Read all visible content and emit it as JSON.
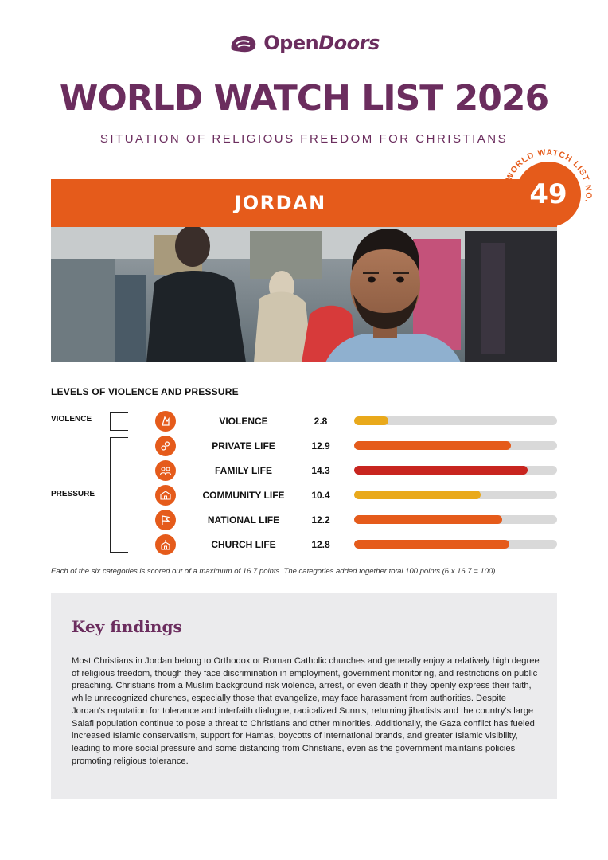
{
  "brand": {
    "name_part1": "Open",
    "name_part2": "Doors"
  },
  "title": "WORLD WATCH LIST 2026",
  "subtitle": "SITUATION OF RELIGIOUS FREEDOM FOR CHRISTIANS",
  "country": "JORDAN",
  "rank": {
    "number": "49",
    "arc_label": "WORLD WATCH LIST NO."
  },
  "levels": {
    "title": "LEVELS OF VIOLENCE AND PRESSURE",
    "violence_label": "VIOLENCE",
    "pressure_label": "PRESSURE",
    "max_score": 16.7,
    "categories": [
      {
        "label": "VIOLENCE",
        "score": "2.8",
        "value": 2.8,
        "color": "#e9a91b",
        "icon": "violence-icon"
      },
      {
        "label": "PRIVATE LIFE",
        "score": "12.9",
        "value": 12.9,
        "color": "#e55b1b",
        "icon": "private-life-icon"
      },
      {
        "label": "FAMILY LIFE",
        "score": "14.3",
        "value": 14.3,
        "color": "#c8251f",
        "icon": "family-life-icon"
      },
      {
        "label": "COMMUNITY LIFE",
        "score": "10.4",
        "value": 10.4,
        "color": "#e9a91b",
        "icon": "community-life-icon"
      },
      {
        "label": "NATIONAL LIFE",
        "score": "12.2",
        "value": 12.2,
        "color": "#e55b1b",
        "icon": "national-life-icon"
      },
      {
        "label": "CHURCH LIFE",
        "score": "12.8",
        "value": 12.8,
        "color": "#e55b1b",
        "icon": "church-life-icon"
      }
    ],
    "footnote": "Each of the six categories is scored out of a maximum of 16.7 points. The categories added together total 100 points (6 x 16.7 = 100)."
  },
  "key_findings": {
    "title": "Key findings",
    "text": "Most Christians in Jordan belong to Orthodox or Roman Catholic churches and generally enjoy a relatively high degree of religious freedom, though they face discrimination in employment, government monitoring, and restrictions on public preaching. Christians from a Muslim background risk violence, arrest, or even death if they openly express their faith, while unrecognized churches, especially those that evangelize, may face harassment from authorities. Despite Jordan's reputation for tolerance and interfaith dialogue, radicalized Sunnis, returning jihadists and the country's large Salafi population continue to pose a threat to Christians and other minorities. Additionally, the Gaza conflict has fueled increased Islamic conservatism, support for Hamas, boycotts of international brands, and greater Islamic visibility, leading to more social pressure and some distancing from Christians, even as the government maintains policies promoting religious tolerance."
  },
  "colors": {
    "purple": "#6b2d5e",
    "orange": "#e55b1b",
    "red": "#c8251f",
    "yellow": "#e9a91b",
    "track": "#d9d9d9",
    "box": "#ebebed"
  }
}
